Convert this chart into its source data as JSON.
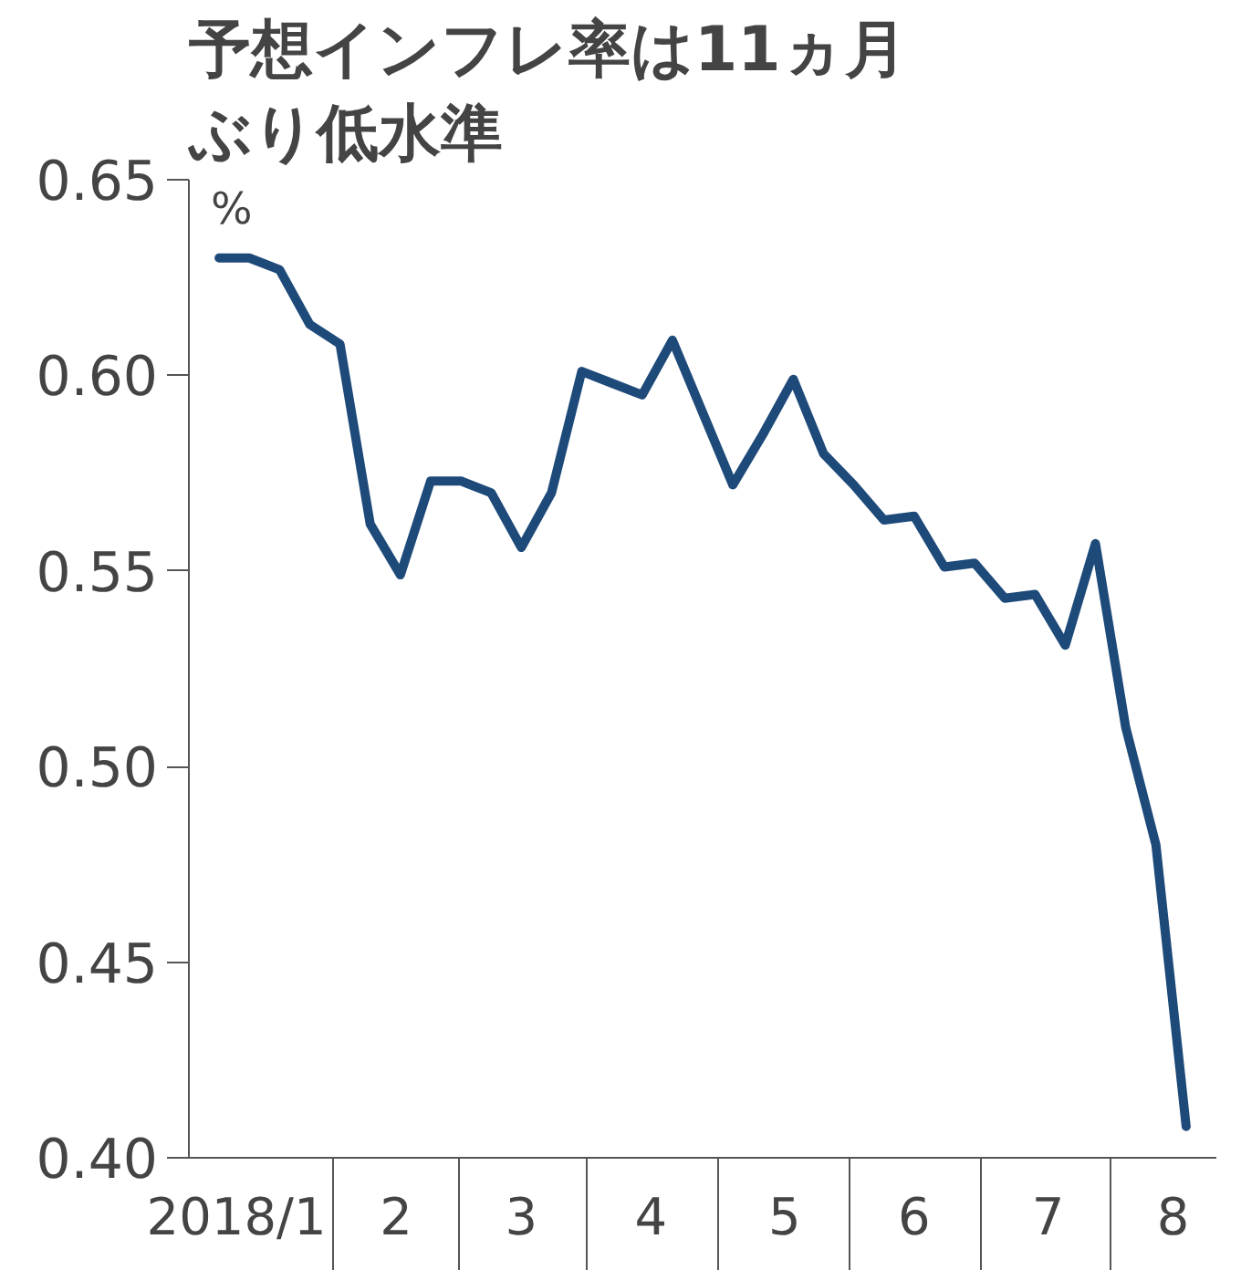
{
  "chart_data": {
    "type": "line",
    "title": "予想インフレ率は11ヵ月ぶり低水準",
    "ylabel": "%",
    "x": [
      "2018-01-05",
      "2018-01-12",
      "2018-01-19",
      "2018-01-26",
      "2018-02-02",
      "2018-02-09",
      "2018-02-16",
      "2018-02-23",
      "2018-03-02",
      "2018-03-09",
      "2018-03-16",
      "2018-03-23",
      "2018-03-30",
      "2018-04-06",
      "2018-04-13",
      "2018-04-20",
      "2018-05-04",
      "2018-05-11",
      "2018-05-18",
      "2018-05-25",
      "2018-06-01",
      "2018-06-08",
      "2018-06-15",
      "2018-06-22",
      "2018-06-29",
      "2018-07-06",
      "2018-07-13",
      "2018-07-20",
      "2018-07-27",
      "2018-08-03",
      "2018-08-10",
      "2018-08-17"
    ],
    "series": [
      {
        "color": "#1e4a7a",
        "values": [
          0.63,
          0.63,
          0.627,
          0.613,
          0.608,
          0.562,
          0.549,
          0.573,
          0.573,
          0.57,
          0.556,
          0.57,
          0.601,
          0.598,
          0.595,
          0.609,
          0.572,
          0.585,
          0.599,
          0.58,
          0.572,
          0.563,
          0.564,
          0.551,
          0.552,
          0.543,
          0.544,
          0.531,
          0.557,
          0.51,
          0.48,
          0.408
        ]
      }
    ],
    "xlim": [
      "2017-12-29",
      "2018-08-24"
    ],
    "xticks": [
      {
        "value": "2018-01-09",
        "label": "2018/1"
      },
      {
        "value": "2018-02-15",
        "label": "2"
      },
      {
        "value": "2018-03-16",
        "label": "3"
      },
      {
        "value": "2018-04-15",
        "label": "4"
      },
      {
        "value": "2018-05-16",
        "label": "5"
      },
      {
        "value": "2018-06-15",
        "label": "6"
      },
      {
        "value": "2018-07-16",
        "label": "7"
      },
      {
        "value": "2018-08-14",
        "label": "8"
      }
    ],
    "ylim": [
      0.4,
      0.65
    ],
    "yticks": [
      {
        "value": 0.4,
        "label": "0.40"
      },
      {
        "value": 0.45,
        "label": "0.45"
      },
      {
        "value": 0.5,
        "label": "0.50"
      },
      {
        "value": 0.55,
        "label": "0.55"
      },
      {
        "value": 0.6,
        "label": "0.60"
      },
      {
        "value": 0.65,
        "label": "0.65"
      }
    ],
    "grid": false,
    "marker": "none",
    "line_style": "solid"
  }
}
